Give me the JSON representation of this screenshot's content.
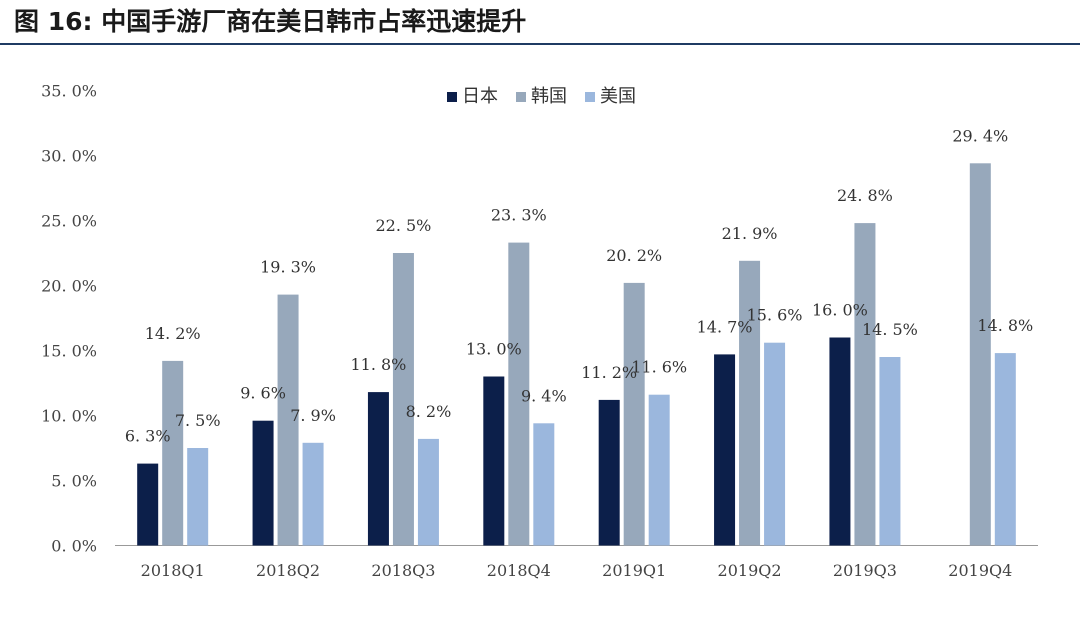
{
  "header": {
    "title": "图 16:  中国手游厂商在美日韩市占率迅速提升"
  },
  "chart_data": {
    "type": "bar",
    "title": "",
    "categories": [
      "2018Q1",
      "2018Q2",
      "2018Q3",
      "2018Q4",
      "2019Q1",
      "2019Q2",
      "2019Q3",
      "2019Q4"
    ],
    "series": [
      {
        "name": "日本",
        "color": "#0c1f4a",
        "values": [
          6.3,
          9.6,
          11.8,
          13.0,
          11.2,
          14.7,
          16.0,
          null
        ]
      },
      {
        "name": "韩国",
        "color": "#97a8bb",
        "values": [
          14.2,
          19.3,
          22.5,
          23.3,
          20.2,
          21.9,
          24.8,
          29.4
        ]
      },
      {
        "name": "美国",
        "color": "#9bb7dd",
        "values": [
          7.5,
          7.9,
          8.2,
          9.4,
          11.6,
          15.6,
          14.5,
          14.8
        ]
      }
    ],
    "data_labels": [
      [
        "6. 3%",
        "9. 6%",
        "11. 8%",
        "13. 0%",
        "11. 2%",
        "14. 7%",
        "16. 0%",
        null
      ],
      [
        "14. 2%",
        "19. 3%",
        "22. 5%",
        "23. 3%",
        "20. 2%",
        "21. 9%",
        "24. 8%",
        "29. 4%"
      ],
      [
        "7. 5%",
        "7. 9%",
        "8. 2%",
        "9. 4%",
        "11. 6%",
        "15. 6%",
        "14. 5%",
        "14. 8%"
      ]
    ],
    "yticks": [
      "0. 0%",
      "5. 0%",
      "10. 0%",
      "15. 0%",
      "20. 0%",
      "25. 0%",
      "30. 0%",
      "35. 0%"
    ],
    "ytick_values": [
      0,
      5,
      10,
      15,
      20,
      25,
      30,
      35
    ],
    "ylim": [
      0,
      35
    ],
    "xlabel": "",
    "ylabel": "",
    "grid": false,
    "legend_position": "top-center"
  }
}
